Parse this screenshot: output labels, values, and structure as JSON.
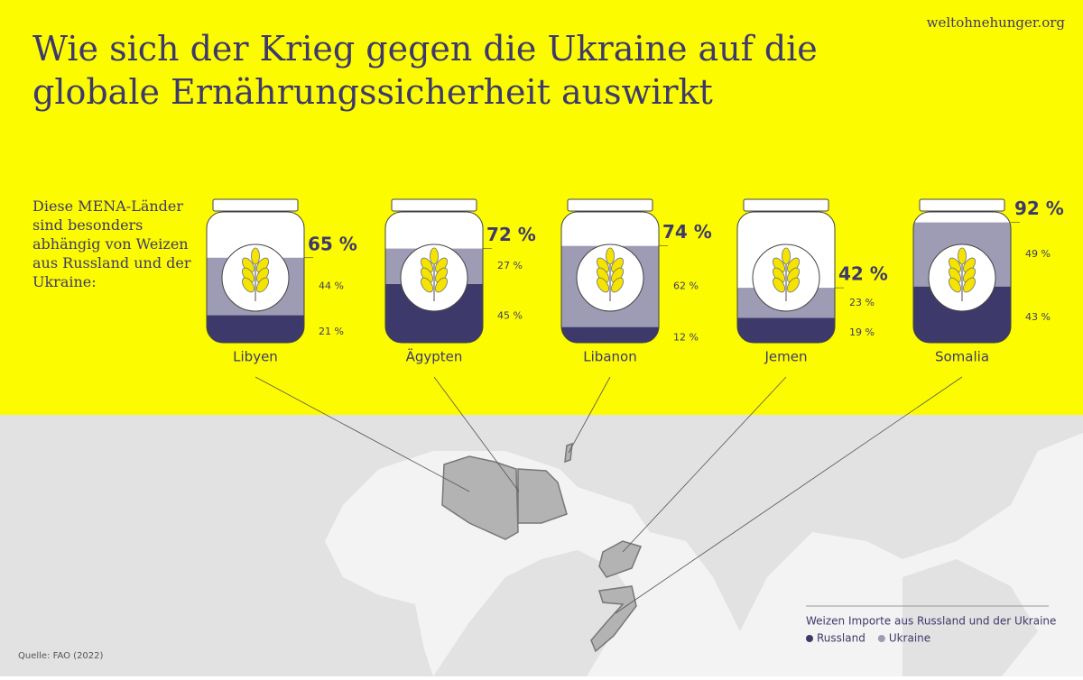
{
  "chart_data": {
    "type": "bar",
    "title": "Wie sich der Krieg gegen die Ukraine auf die globale Ernährungssicherheit auswirkt",
    "subtitle": "Diese MENA-Länder sind besonders abhängig von Weizen aus Russland und der Ukraine:",
    "site": "weltohnehunger.org",
    "source": "Quelle: FAO (2022)",
    "legend_title": "Weizen Importe aus Russland und der Ukraine",
    "categories": [
      "Libyen",
      "Ägypten",
      "Libanon",
      "Jemen",
      "Somalia"
    ],
    "series": [
      {
        "name": "Russland",
        "color": "#3d3a6b",
        "values": [
          21,
          45,
          12,
          19,
          43
        ],
        "value_labels": [
          "21 %",
          "45 %",
          "12 %",
          "19 %",
          "43 %"
        ]
      },
      {
        "name": "Ukraine",
        "color": "#9e9bb5",
        "values": [
          44,
          27,
          62,
          23,
          49
        ],
        "value_labels": [
          "44 %",
          "27 %",
          "62 %",
          "23 %",
          "49 %"
        ]
      }
    ],
    "totals": [
      {
        "value": 65,
        "label": "65 %"
      },
      {
        "value": 72,
        "label": "72 %"
      },
      {
        "value": 74,
        "label": "74 %"
      },
      {
        "value": 42,
        "label": "42 %"
      },
      {
        "value": 92,
        "label": "92 %"
      }
    ],
    "ylim": [
      0,
      100
    ]
  }
}
